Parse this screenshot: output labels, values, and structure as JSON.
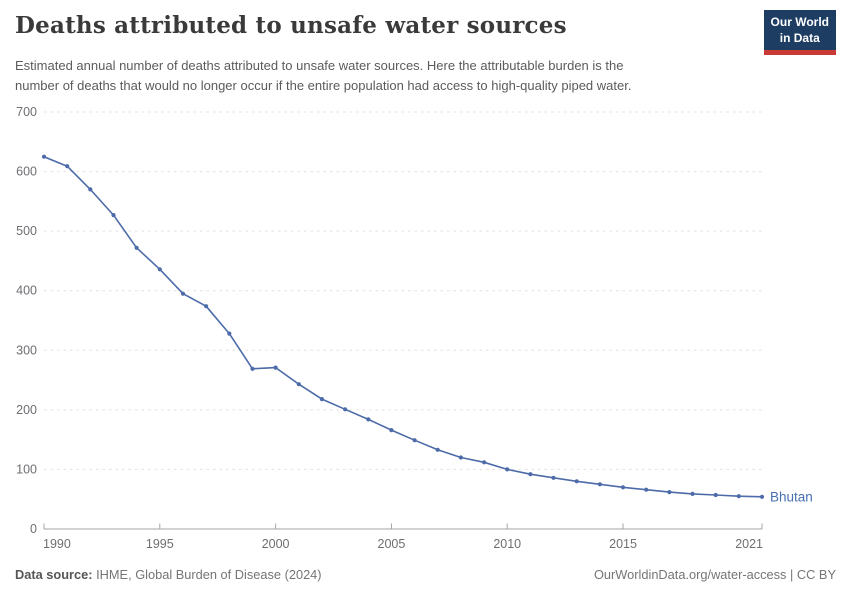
{
  "header": {
    "title": "Deaths attributed to unsafe water sources",
    "subtitle_line1": "Estimated annual number of deaths attributed to unsafe water sources. Here the attributable burden is the",
    "subtitle_line2": "number of deaths that would no longer occur if the entire population had access to high-quality piped water.",
    "logo": {
      "line1": "Our World",
      "line2": "in Data",
      "navy": "#1d3d63",
      "red": "#c93a35"
    }
  },
  "chart_data": {
    "type": "line",
    "title": "Deaths attributed to unsafe water sources",
    "entity": "Bhutan",
    "x": [
      1990,
      1991,
      1992,
      1993,
      1994,
      1995,
      1996,
      1997,
      1998,
      1999,
      2000,
      2001,
      2002,
      2003,
      2004,
      2005,
      2006,
      2007,
      2008,
      2009,
      2010,
      2011,
      2012,
      2013,
      2014,
      2015,
      2016,
      2017,
      2018,
      2019,
      2020,
      2021
    ],
    "values": [
      625,
      609,
      570,
      527,
      472,
      436,
      395,
      374,
      328,
      269,
      271,
      243,
      218,
      201,
      184,
      166,
      149,
      133,
      120,
      112,
      100,
      92,
      86,
      80,
      75,
      70,
      66,
      62,
      59,
      57,
      55,
      54
    ],
    "xticks": [
      1990,
      1995,
      2000,
      2005,
      2010,
      2015,
      2021
    ],
    "yticks": [
      0,
      100,
      200,
      300,
      400,
      500,
      600,
      700
    ],
    "xlim": [
      1990,
      2021
    ],
    "ylim": [
      0,
      700
    ],
    "grid": true,
    "legend_position": "end-of-line",
    "line_color": "#4c6ba8",
    "label_color": "#4770b0",
    "grid_color": "#e0e0e0",
    "axis_color": "#a5a5a5",
    "tick_text_color": "#6e6e73"
  },
  "footer": {
    "source_label": "Data source:",
    "source_text": " IHME, Global Burden of Disease (2024)",
    "right_text": "OurWorldinData.org/water-access | CC BY"
  }
}
